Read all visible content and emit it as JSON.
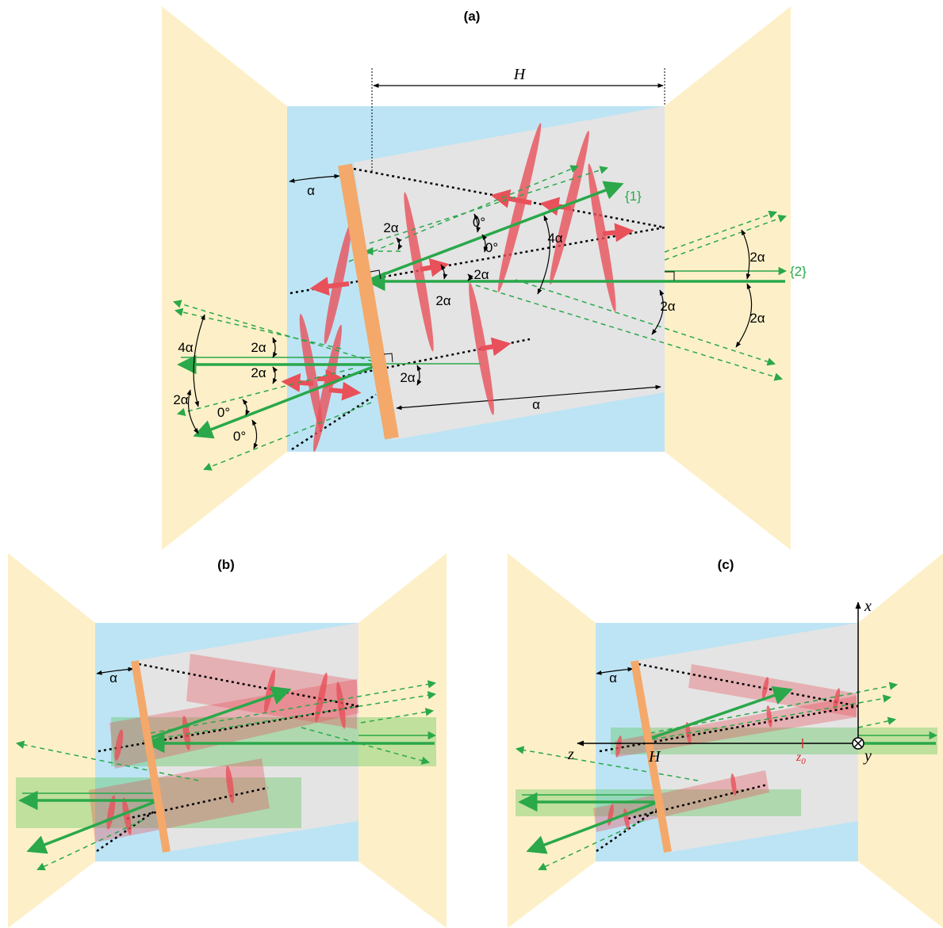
{
  "panels": {
    "a": {
      "title": "(a)",
      "labels": {
        "H": "H",
        "alpha_top": "α",
        "alpha_bottom": "α",
        "beam1": "{1}",
        "beam2": "{2}",
        "two_alpha": "2α",
        "four_alpha": "4α",
        "zero_deg": "0°"
      }
    },
    "b": {
      "title": "(b)",
      "labels": {
        "alpha": "α"
      }
    },
    "c": {
      "title": "(c)",
      "labels": {
        "alpha": "α",
        "x": "x",
        "y": "y",
        "z": "z",
        "H": "H",
        "z0": "z",
        "z0_sub": "0"
      }
    }
  },
  "colors": {
    "mirror_panel": "#fdf0c8",
    "cell_blue": "#bde4f4",
    "cell_gray": "#e4e4e4",
    "mirror": "#f4a86a",
    "beam_green": "#2aa84a",
    "pulse_red": "#e8505a",
    "dotted": "#000000"
  }
}
